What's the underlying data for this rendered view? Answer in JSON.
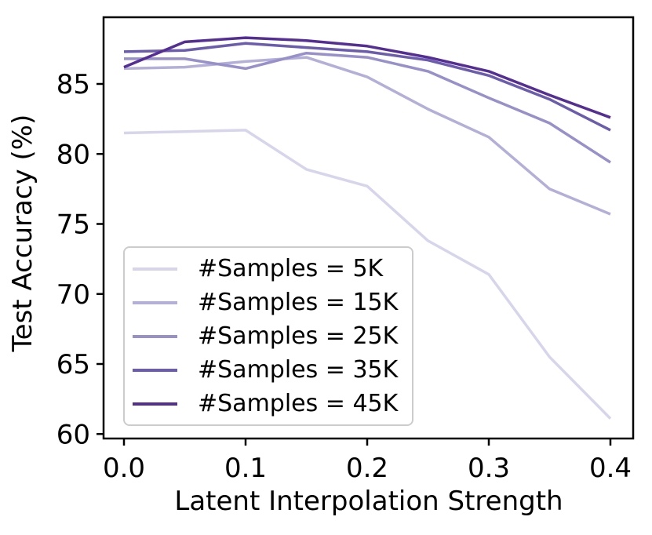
{
  "chart_data": {
    "type": "line",
    "title": "",
    "xlabel": "Latent Interpolation Strength",
    "ylabel": "Test Accuracy (%)",
    "x": [
      0.0,
      0.05,
      0.1,
      0.15,
      0.2,
      0.25,
      0.3,
      0.35,
      0.4
    ],
    "x_tick_labels": [
      "0.0",
      "0.1",
      "0.2",
      "0.3",
      "0.4"
    ],
    "x_ticks": [
      0.0,
      0.1,
      0.2,
      0.3,
      0.4
    ],
    "y_ticks": [
      60,
      65,
      70,
      75,
      80,
      85
    ],
    "xlim": [
      -0.017,
      0.419
    ],
    "ylim": [
      59.7,
      89.8
    ],
    "grid": false,
    "legend_position": "lower-left",
    "axis_color": "#000000",
    "series": [
      {
        "name": "#Samples = 5K",
        "color": "#d7d5eb",
        "values": [
          81.5,
          81.6,
          81.7,
          78.9,
          77.7,
          73.8,
          71.4,
          65.5,
          61.1
        ]
      },
      {
        "name": "#Samples = 15K",
        "color": "#b3afd8",
        "values": [
          86.1,
          86.2,
          86.6,
          86.9,
          85.5,
          83.2,
          81.2,
          77.5,
          75.7
        ]
      },
      {
        "name": "#Samples = 25K",
        "color": "#9790ca",
        "values": [
          86.8,
          86.8,
          86.1,
          87.2,
          86.9,
          85.9,
          84.0,
          82.2,
          79.4
        ]
      },
      {
        "name": "#Samples = 35K",
        "color": "#6c5cad",
        "values": [
          87.3,
          87.4,
          87.9,
          87.6,
          87.3,
          86.7,
          85.6,
          83.9,
          81.7
        ]
      },
      {
        "name": "#Samples = 45K",
        "color": "#552e95",
        "values": [
          86.2,
          88.0,
          88.3,
          88.1,
          87.7,
          86.9,
          85.9,
          84.2,
          82.6
        ]
      }
    ]
  }
}
